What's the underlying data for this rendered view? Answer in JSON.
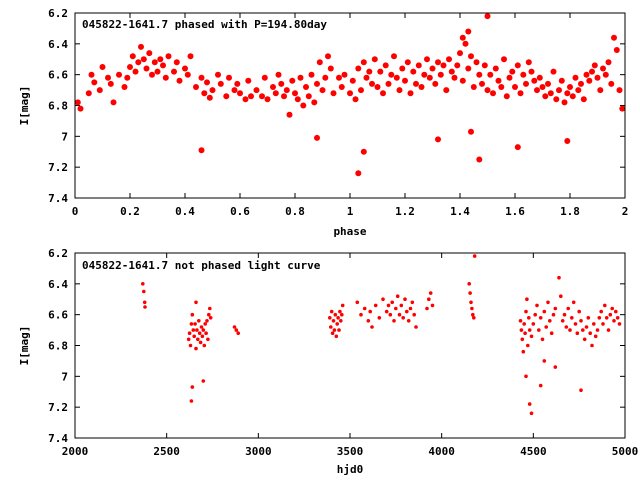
{
  "chart_data": [
    {
      "type": "scatter",
      "title": "045822-1641.7 phased with P=194.80day",
      "xlabel": "phase",
      "ylabel": "I[mag]",
      "xlim": [
        0,
        2
      ],
      "ylim": [
        6.2,
        7.4
      ],
      "y_inverted": true,
      "grid": false,
      "marker": "filled-circle",
      "xticks": [
        "0",
        "0.2",
        "0.4",
        "0.6",
        "0.8",
        "1",
        "1.2",
        "1.4",
        "1.6",
        "1.8",
        "2"
      ],
      "yticks": [
        "6.2",
        "6.4",
        "6.6",
        "6.8",
        "7",
        "7.2",
        "7.4"
      ],
      "series": [
        {
          "color": "#ff0000",
          "x": [
            0.01,
            0.02,
            0.05,
            0.06,
            0.07,
            0.09,
            0.1,
            0.12,
            0.13,
            0.14,
            0.16,
            0.18,
            0.19,
            0.2,
            0.21,
            0.22,
            0.23,
            0.24,
            0.25,
            0.26,
            0.27,
            0.28,
            0.29,
            0.3,
            0.31,
            0.32,
            0.33,
            0.34,
            0.36,
            0.37,
            0.38,
            0.4,
            0.41,
            0.42,
            0.44,
            0.46,
            0.47,
            0.48,
            0.49,
            0.5,
            0.52,
            0.53,
            0.55,
            0.56,
            0.58,
            0.59,
            0.6,
            0.62,
            0.63,
            0.64,
            0.66,
            0.68,
            0.69,
            0.7,
            0.72,
            0.73,
            0.74,
            0.75,
            0.76,
            0.77,
            0.78,
            0.79,
            0.8,
            0.81,
            0.82,
            0.83,
            0.84,
            0.85,
            0.86,
            0.87,
            0.88,
            0.89,
            0.9,
            0.91,
            0.92,
            0.93,
            0.94,
            0.96,
            0.97,
            0.98,
            1.0,
            1.01,
            1.02,
            1.03,
            1.04,
            1.05,
            1.06,
            1.07,
            1.08,
            1.09,
            1.1,
            1.11,
            1.12,
            1.13,
            1.14,
            1.15,
            1.16,
            1.17,
            1.18,
            1.19,
            1.2,
            1.21,
            1.22,
            1.23,
            1.24,
            1.25,
            1.26,
            1.27,
            1.28,
            1.29,
            1.3,
            1.31,
            1.32,
            1.33,
            1.34,
            1.35,
            1.36,
            1.37,
            1.38,
            1.39,
            1.4,
            1.41,
            1.42,
            1.43,
            1.44,
            1.45,
            1.46,
            1.47,
            1.48,
            1.49,
            1.5,
            1.51,
            1.52,
            1.53,
            1.54,
            1.55,
            1.56,
            1.57,
            1.58,
            1.59,
            1.6,
            1.61,
            1.62,
            1.63,
            1.64,
            1.65,
            1.66,
            1.67,
            1.68,
            1.69,
            1.7,
            1.71,
            1.72,
            1.73,
            1.74,
            1.75,
            1.76,
            1.77,
            1.78,
            1.79,
            1.8,
            1.81,
            1.82,
            1.83,
            1.84,
            1.85,
            1.86,
            1.87,
            1.88,
            1.89,
            1.9,
            1.91,
            1.92,
            1.93,
            1.94,
            1.95,
            1.96,
            1.97,
            1.98,
            1.99,
            0.46,
            0.88,
            1.03,
            1.05,
            1.32,
            1.44,
            1.47,
            1.61,
            1.79,
            1.5,
            1.43,
            1.41
          ],
          "y": [
            6.78,
            6.82,
            6.72,
            6.6,
            6.65,
            6.7,
            6.55,
            6.62,
            6.66,
            6.78,
            6.6,
            6.68,
            6.62,
            6.55,
            6.48,
            6.58,
            6.52,
            6.42,
            6.5,
            6.56,
            6.46,
            6.6,
            6.52,
            6.58,
            6.5,
            6.54,
            6.62,
            6.48,
            6.58,
            6.52,
            6.64,
            6.56,
            6.6,
            6.48,
            6.68,
            6.62,
            6.72,
            6.65,
            6.75,
            6.7,
            6.6,
            6.66,
            6.74,
            6.62,
            6.7,
            6.66,
            6.72,
            6.76,
            6.64,
            6.74,
            6.7,
            6.74,
            6.62,
            6.76,
            6.68,
            6.72,
            6.6,
            6.66,
            6.74,
            6.7,
            6.86,
            6.64,
            6.72,
            6.76,
            6.62,
            6.8,
            6.68,
            6.74,
            6.6,
            6.78,
            6.66,
            6.52,
            6.7,
            6.62,
            6.48,
            6.56,
            6.72,
            6.62,
            6.68,
            6.6,
            6.72,
            6.64,
            6.76,
            6.56,
            6.7,
            6.52,
            6.62,
            6.58,
            6.66,
            6.5,
            6.68,
            6.58,
            6.72,
            6.54,
            6.66,
            6.6,
            6.48,
            6.62,
            6.7,
            6.56,
            6.64,
            6.52,
            6.72,
            6.58,
            6.66,
            6.54,
            6.68,
            6.6,
            6.5,
            6.62,
            6.56,
            6.66,
            6.52,
            6.6,
            6.54,
            6.7,
            6.5,
            6.58,
            6.62,
            6.54,
            6.46,
            6.64,
            6.4,
            6.56,
            6.48,
            6.68,
            6.52,
            6.6,
            6.66,
            6.54,
            6.7,
            6.6,
            6.72,
            6.56,
            6.64,
            6.68,
            6.5,
            6.74,
            6.62,
            6.58,
            6.68,
            6.54,
            6.72,
            6.6,
            6.66,
            6.52,
            6.58,
            6.64,
            6.7,
            6.62,
            6.68,
            6.74,
            6.66,
            6.72,
            6.58,
            6.76,
            6.7,
            6.64,
            6.78,
            6.72,
            6.68,
            6.74,
            6.62,
            6.7,
            6.66,
            6.76,
            6.6,
            6.64,
            6.58,
            6.54,
            6.62,
            6.7,
            6.56,
            6.6,
            6.52,
            6.66,
            6.36,
            6.44,
            6.7,
            6.82,
            7.09,
            7.01,
            7.24,
            7.1,
            7.02,
            6.97,
            7.15,
            7.07,
            7.03,
            6.22,
            6.32,
            6.36
          ]
        }
      ]
    },
    {
      "type": "scatter",
      "title": "045822-1641.7 not phased light curve",
      "xlabel": "hjd0",
      "ylabel": "I[mag]",
      "xlim": [
        2000,
        5000
      ],
      "ylim": [
        6.2,
        7.4
      ],
      "y_inverted": true,
      "grid": false,
      "marker": "filled-circle",
      "xticks": [
        "2000",
        "2500",
        "3000",
        "3500",
        "4000",
        "4500",
        "5000"
      ],
      "yticks": [
        "6.2",
        "6.4",
        "6.6",
        "6.8",
        "7",
        "7.2",
        "7.4"
      ],
      "series": [
        {
          "color": "#ff0000",
          "x": [
            2370,
            2375,
            2380,
            2382,
            2620,
            2625,
            2630,
            2635,
            2640,
            2645,
            2650,
            2655,
            2660,
            2665,
            2670,
            2675,
            2680,
            2685,
            2690,
            2695,
            2700,
            2705,
            2710,
            2715,
            2720,
            2725,
            2730,
            2735,
            2740,
            2635,
            2640,
            2660,
            2700,
            2870,
            2880,
            2890,
            3390,
            3395,
            3400,
            3405,
            3410,
            3415,
            3420,
            3425,
            3430,
            3435,
            3440,
            3445,
            3450,
            3455,
            3460,
            3540,
            3560,
            3580,
            3600,
            3610,
            3620,
            3640,
            3660,
            3680,
            3700,
            3710,
            3720,
            3730,
            3740,
            3750,
            3760,
            3770,
            3780,
            3790,
            3800,
            3810,
            3820,
            3830,
            3840,
            3850,
            3860,
            3920,
            3930,
            3940,
            3950,
            4150,
            4155,
            4160,
            4165,
            4170,
            4175,
            4180,
            4430,
            4435,
            4440,
            4445,
            4450,
            4455,
            4460,
            4465,
            4470,
            4475,
            4480,
            4490,
            4500,
            4510,
            4520,
            4530,
            4540,
            4550,
            4560,
            4570,
            4580,
            4590,
            4600,
            4610,
            4620,
            4640,
            4650,
            4660,
            4670,
            4680,
            4690,
            4700,
            4710,
            4720,
            4730,
            4740,
            4750,
            4760,
            4770,
            4780,
            4790,
            4800,
            4810,
            4820,
            4830,
            4840,
            4850,
            4860,
            4870,
            4880,
            4890,
            4900,
            4910,
            4920,
            4930,
            4940,
            4950,
            4960,
            4970,
            4460,
            4480,
            4490,
            4540,
            4560,
            4620,
            4760
          ],
          "y": [
            6.4,
            6.45,
            6.52,
            6.55,
            6.76,
            6.72,
            6.8,
            6.66,
            6.6,
            6.7,
            6.74,
            6.66,
            6.82,
            6.7,
            6.76,
            6.64,
            6.72,
            6.78,
            6.68,
            6.74,
            6.7,
            6.8,
            6.66,
            6.72,
            6.64,
            6.76,
            6.6,
            6.56,
            6.62,
            7.16,
            7.07,
            6.52,
            7.03,
            6.68,
            6.7,
            6.72,
            6.62,
            6.68,
            6.58,
            6.72,
            6.64,
            6.7,
            6.6,
            6.74,
            6.66,
            6.62,
            6.7,
            6.58,
            6.64,
            6.6,
            6.54,
            6.52,
            6.6,
            6.56,
            6.64,
            6.58,
            6.68,
            6.54,
            6.62,
            6.5,
            6.58,
            6.54,
            6.6,
            6.52,
            6.64,
            6.56,
            6.48,
            6.6,
            6.54,
            6.62,
            6.5,
            6.58,
            6.64,
            6.56,
            6.52,
            6.6,
            6.68,
            6.56,
            6.5,
            6.46,
            6.54,
            6.4,
            6.46,
            6.52,
            6.56,
            6.6,
            6.62,
            6.22,
            6.64,
            6.7,
            6.76,
            6.84,
            6.66,
            6.72,
            6.58,
            6.5,
            6.8,
            6.62,
            6.7,
            6.74,
            6.66,
            6.6,
            6.54,
            6.7,
            6.62,
            6.76,
            6.58,
            6.68,
            6.52,
            6.64,
            6.72,
            6.6,
            6.56,
            6.36,
            6.48,
            6.64,
            6.6,
            6.68,
            6.56,
            6.7,
            6.62,
            6.52,
            6.66,
            6.72,
            6.58,
            6.64,
            6.7,
            6.76,
            6.68,
            6.62,
            6.72,
            6.8,
            6.66,
            6.74,
            6.7,
            6.62,
            6.58,
            6.66,
            6.54,
            6.62,
            6.7,
            6.6,
            6.56,
            6.64,
            6.58,
            6.62,
            6.66,
            7.0,
            7.18,
            7.24,
            7.06,
            6.9,
            6.94,
            7.09
          ]
        }
      ]
    }
  ]
}
